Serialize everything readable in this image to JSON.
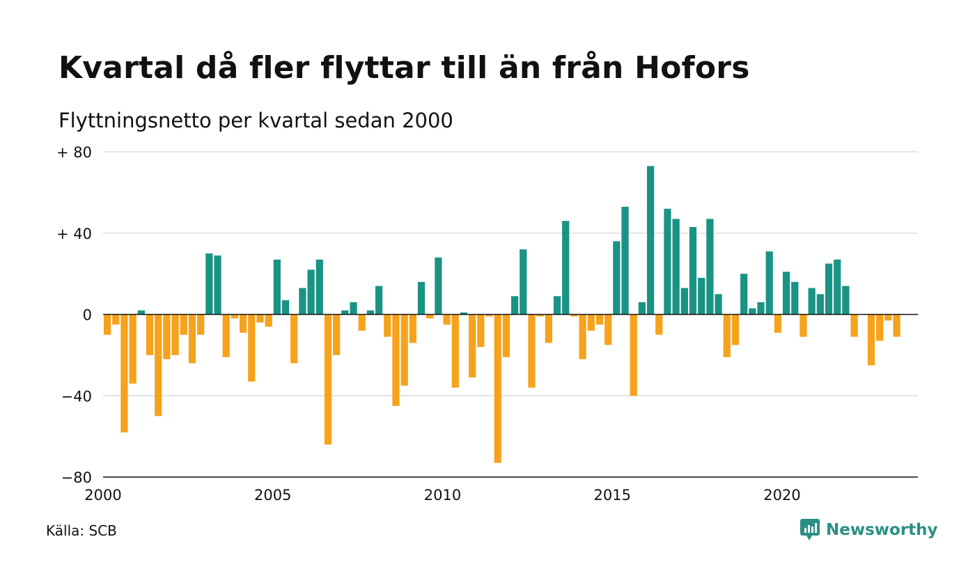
{
  "title": "Kvartal då fler flyttar till än från Hofors",
  "subtitle": "Flyttningsnetto per kvartal sedan 2000",
  "source": "Källa: SCB",
  "brand": {
    "name": "Newsworthy",
    "icon": "newsworthy-logo-icon",
    "color": "#2a8f84"
  },
  "colors": {
    "positive": "#1a9385",
    "negative": "#f7a21c",
    "grid": "#dddddd",
    "zero_line": "#111111"
  },
  "chart_data": {
    "type": "bar",
    "title": "Kvartal då fler flyttar till än från Hofors",
    "subtitle": "Flyttningsnetto per kvartal sedan 2000",
    "xlabel": "",
    "ylabel": "",
    "x_start": "2000 Q1",
    "x_ticks": [
      "2000",
      "2005",
      "2010",
      "2015",
      "2020"
    ],
    "x_tick_years": [
      2000,
      2005,
      2010,
      2015,
      2020
    ],
    "y_ticks": [
      80,
      40,
      0,
      -40,
      -80
    ],
    "y_tick_labels": [
      "+ 80",
      "+ 40",
      "0",
      "−40",
      "−80"
    ],
    "ylim": [
      -80,
      80
    ],
    "xlim": [
      "2000 Q1",
      "2023 Q4"
    ],
    "grid": true,
    "legend": "none",
    "series": [
      {
        "values": [
          -10,
          -5,
          -58,
          -34,
          2,
          -20,
          -50,
          -22,
          -20,
          -10,
          -24,
          -10,
          30,
          29,
          -21,
          -2,
          -9,
          -33,
          -4,
          -6,
          27,
          7,
          -24,
          13,
          22,
          27,
          -64,
          -20,
          2,
          6,
          -8,
          2,
          14,
          -11,
          -45,
          -35,
          -14,
          16,
          -2,
          28,
          -5,
          -36,
          1,
          -31,
          -16,
          -1,
          -73,
          -21,
          9,
          32,
          -36,
          -1,
          -14,
          9,
          46,
          -1,
          -22,
          -8,
          -5,
          -15,
          36,
          53,
          -40,
          6,
          73,
          -10,
          52,
          47,
          13,
          43,
          18,
          47,
          10,
          -21,
          -15,
          20,
          3,
          6,
          31,
          -9,
          21,
          16,
          -11,
          13,
          10,
          25,
          27,
          14,
          -11,
          0,
          -25,
          -13,
          -3,
          -11
        ]
      }
    ]
  }
}
